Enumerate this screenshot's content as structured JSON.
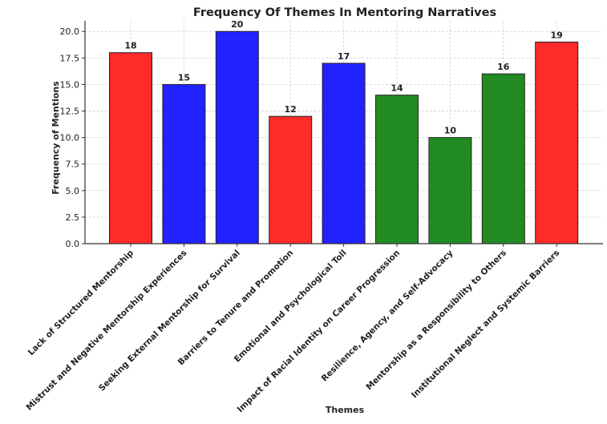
{
  "chart_data": {
    "type": "bar",
    "title": "Frequency Of Themes In Mentoring Narratives",
    "xlabel": "Themes",
    "ylabel": "Frequency of Mentions",
    "ylim": [
      0,
      21
    ],
    "yticks": [
      0.0,
      2.5,
      5.0,
      7.5,
      10.0,
      12.5,
      15.0,
      17.5,
      20.0
    ],
    "ytick_labels": [
      "0.0",
      "2.5",
      "5.0",
      "7.5",
      "10.0",
      "12.5",
      "15.0",
      "17.5",
      "20.0"
    ],
    "grid": true,
    "categories": [
      "Lack of Structured Mentorship",
      "Mistrust and Negative Mentorship Experiences",
      "Seeking External Mentorship for Survival",
      "Barriers to Tenure and Promotion",
      "Emotional and Psychological Toll",
      "Impact of Racial Identity on Career Progression",
      "Resilience, Agency, and Self-Advocacy",
      "Mentorship as a Responsibility to Others",
      "Institutional Neglect and Systemic Barriers"
    ],
    "values": [
      18,
      15,
      20,
      12,
      17,
      14,
      10,
      16,
      19
    ],
    "data_labels": [
      "18",
      "15",
      "20",
      "12",
      "17",
      "14",
      "10",
      "16",
      "19"
    ],
    "bar_colors": [
      "#ff2a2a",
      "#2222ff",
      "#2222ff",
      "#ff2a2a",
      "#2222ff",
      "#228B22",
      "#228B22",
      "#228B22",
      "#ff2a2a"
    ]
  }
}
